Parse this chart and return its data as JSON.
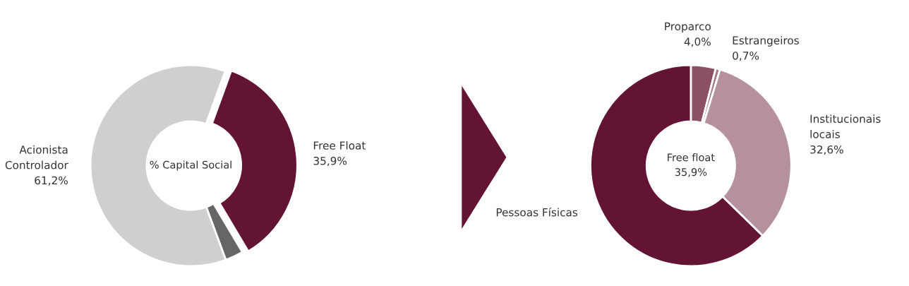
{
  "chart_data": [
    {
      "type": "donut",
      "categories": [
        "Free Float",
        null,
        "Acionista Controlador"
      ],
      "values": [
        35.9,
        2.9,
        61.2
      ],
      "colors": [
        "#631434",
        "#666666",
        "#cfcfcf"
      ],
      "value_labels": [
        "35,9%",
        null,
        "61,2%"
      ],
      "annotations": [
        "% Capital Social"
      ]
    },
    {
      "type": "donut",
      "categories": [
        "Proparco",
        "Estrangeiros",
        "Institucionais locais",
        "Pessoas Físicas"
      ],
      "values": [
        4.0,
        0.7,
        32.6,
        62.7
      ],
      "colors": [
        "#8c5066",
        "#a77a8b",
        "#b5919e",
        "#631434"
      ],
      "value_labels": [
        "4,0%",
        "0,7%",
        "32,6%",
        null
      ],
      "annotations": [
        "Free float",
        "35,9%"
      ]
    }
  ]
}
